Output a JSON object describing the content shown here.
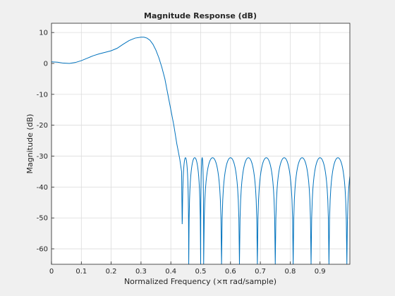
{
  "chart_data": {
    "type": "line",
    "title": "Magnitude Response (dB)",
    "xlabel": "Normalized Frequency (×π rad/sample)",
    "ylabel": "Magnitude (dB)",
    "xlim": [
      0,
      1
    ],
    "ylim": [
      -65,
      13
    ],
    "grid": true,
    "x_ticks": [
      0,
      0.1,
      0.2,
      0.3,
      0.4,
      0.5,
      0.6,
      0.7,
      0.8,
      0.9
    ],
    "x_tick_labels": [
      "0",
      "0.1",
      "0.2",
      "0.3",
      "0.4",
      "0.5",
      "0.6",
      "0.7",
      "0.8",
      "0.9"
    ],
    "y_ticks": [
      10,
      0,
      -10,
      -20,
      -30,
      -40,
      -50,
      -60
    ],
    "y_tick_labels": [
      "10",
      "0",
      "-10",
      "-20",
      "-30",
      "-40",
      "-50",
      "-60"
    ],
    "line_color": "#0072bd",
    "series": [
      {
        "passband": {
          "x": [
            0,
            0.02,
            0.04,
            0.06,
            0.08,
            0.1,
            0.12,
            0.14,
            0.16,
            0.18,
            0.2,
            0.22,
            0.24,
            0.26,
            0.28,
            0.3,
            0.31,
            0.32,
            0.33,
            0.34,
            0.35,
            0.36,
            0.37,
            0.38,
            0.39,
            0.4,
            0.41,
            0.415,
            0.42,
            0.425,
            0.43,
            0.433,
            0.436
          ],
          "y": [
            0.5,
            0.4,
            0.1,
            0,
            0.3,
            0.9,
            1.7,
            2.5,
            3.1,
            3.6,
            4.1,
            4.9,
            6.2,
            7.4,
            8.2,
            8.5,
            8.5,
            8.2,
            7.5,
            6.2,
            4.3,
            1.8,
            -1.3,
            -5,
            -10,
            -15,
            -20,
            -23,
            -26,
            -28.5,
            -31,
            -33,
            -35
          ]
        },
        "stopband_nulls": [
          0.438,
          0.46,
          0.5,
          0.51,
          0.57,
          0.63,
          0.69,
          0.75,
          0.81,
          0.87,
          0.93,
          0.99
        ],
        "stopband_null_depths": [
          -52,
          -65,
          -65,
          -65,
          -65,
          -65,
          -65,
          -65,
          -65,
          -65,
          -65,
          -65
        ],
        "stopband_ripple_peak": -30.5
      }
    ]
  }
}
